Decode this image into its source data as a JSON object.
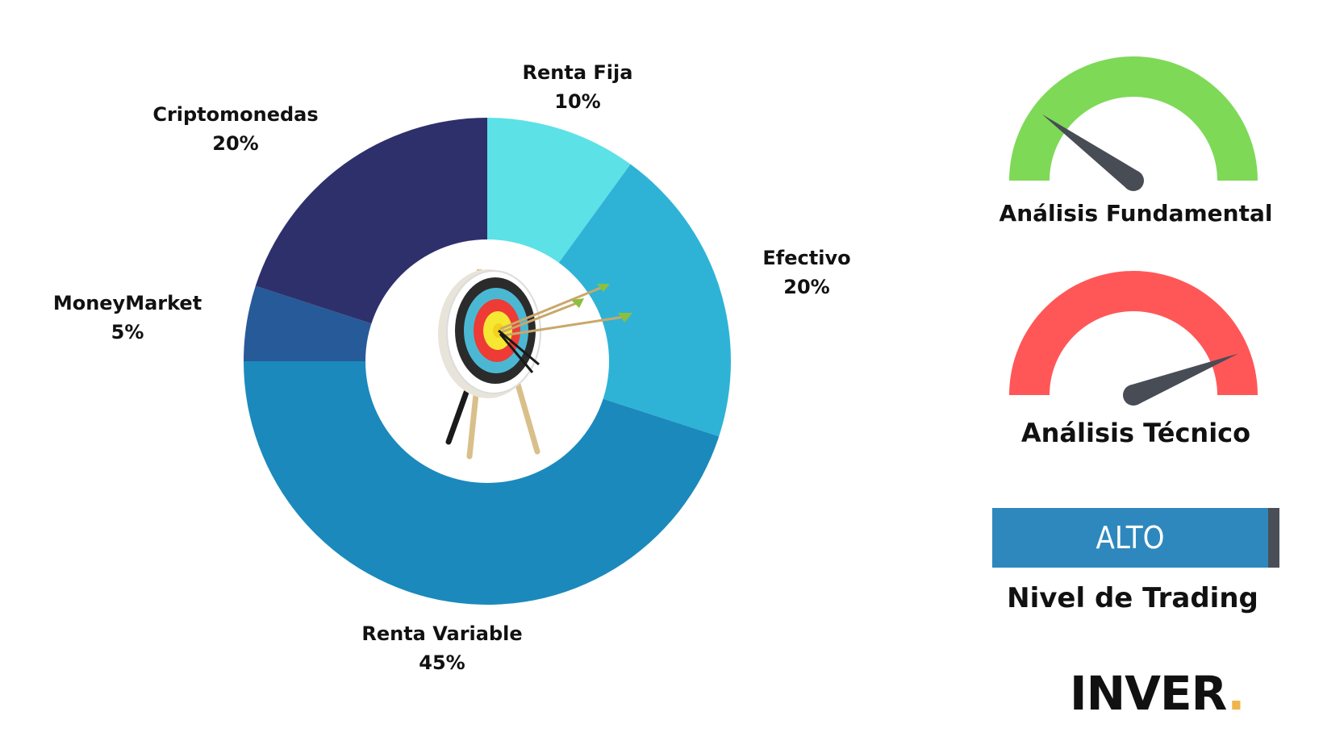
{
  "chart_data": {
    "type": "pie",
    "title": "",
    "donut": true,
    "slices": [
      {
        "label": "Renta Fija",
        "value": 10,
        "value_label": "10%",
        "color": "#5ce1e6"
      },
      {
        "label": "Efectivo",
        "value": 20,
        "value_label": "20%",
        "color": "#2eb3d6"
      },
      {
        "label": "Renta Variable",
        "value": 45,
        "value_label": "45%",
        "color": "#1b89bc"
      },
      {
        "label": "MoneyMarket",
        "value": 5,
        "value_label": "5%",
        "color": "#275a98"
      },
      {
        "label": "Criptomonedas",
        "value": 20,
        "value_label": "20%",
        "color": "#2e306c"
      }
    ],
    "center_image": "archery-target-with-arrows"
  },
  "gauges": {
    "fundamental": {
      "title": "Análisis Fundamental",
      "color": "#7ed957",
      "level": 0.2,
      "needle_color": "#474c55"
    },
    "technical": {
      "title": "Análisis Técnico",
      "color": "#ff5757",
      "level": 0.88,
      "needle_color": "#474c55"
    }
  },
  "trading_level": {
    "value": "ALTO",
    "title": "Nivel de Trading",
    "bar_color": "#2e88bd",
    "marker_color": "#4a4f57"
  },
  "brand": {
    "name": "INVER",
    "dot": ".",
    "dot_color": "#f0b44c"
  }
}
